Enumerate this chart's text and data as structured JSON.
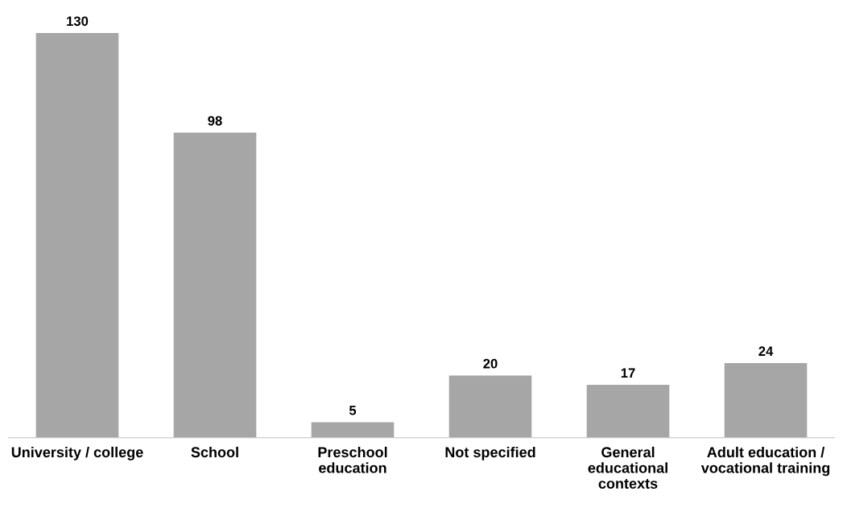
{
  "chart_data": {
    "type": "bar",
    "categories": [
      "University / college",
      "School",
      "Preschool\neducation",
      "Not specified",
      "General\neducational\ncontexts",
      "Adult education /\nvocational training"
    ],
    "values": [
      130,
      98,
      5,
      20,
      17,
      24
    ],
    "color": "#a6a6a6",
    "data_labels": true,
    "grid": false,
    "legend": false
  }
}
